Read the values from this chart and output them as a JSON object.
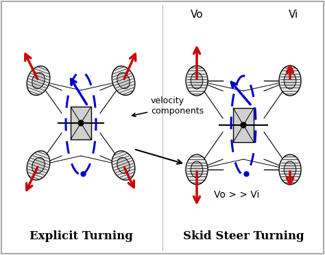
{
  "left_label": "Explicit Turning",
  "right_label": "Skid Steer Turning",
  "vo_label": "Vo",
  "vi_label": "Vi",
  "vo_vi_label": "Vo > > Vi",
  "velocity_label": "velocity\ncomponents",
  "bg_color": "#ffffff",
  "border_color": "#aaaaaa",
  "red": "#cc0000",
  "blue": "#0000cc",
  "black": "#000000",
  "label_fontsize": 12,
  "annotation_fontsize": 9,
  "small_fontsize": 11,
  "fig_w": 4.74,
  "fig_h": 3.73,
  "dpi": 100
}
